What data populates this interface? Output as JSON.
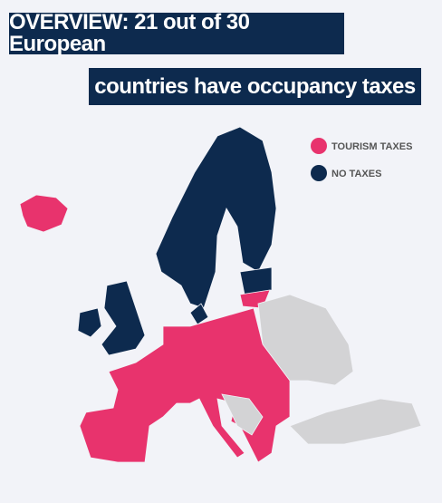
{
  "title": {
    "lines": [
      "OVERVIEW: 21 out of 30 European",
      "countries have occupancy taxes"
    ]
  },
  "legend": [
    {
      "label": "TOURISM TAXES",
      "color": "#e8336d"
    },
    {
      "label": "NO TAXES",
      "color": "#0d2a4e"
    }
  ],
  "other_color": "#d3d3d5"
}
